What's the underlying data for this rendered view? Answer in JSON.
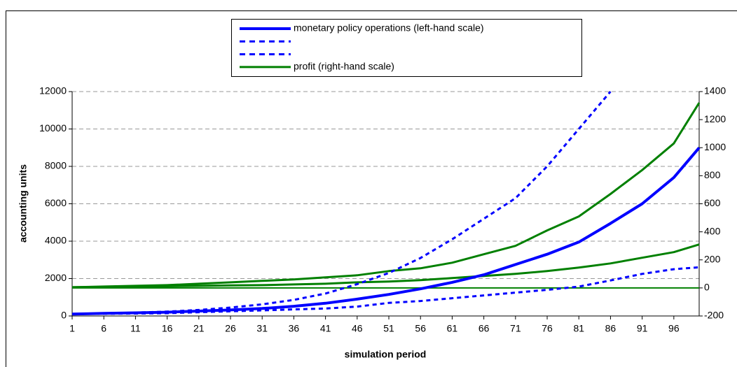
{
  "chart_data": {
    "type": "line",
    "x_label": "simulation period",
    "y_label": "accounting units",
    "x": [
      1,
      6,
      11,
      16,
      21,
      26,
      31,
      36,
      41,
      46,
      51,
      56,
      61,
      66,
      71,
      76,
      81,
      86,
      91,
      96,
      100
    ],
    "xlim": [
      1,
      100
    ],
    "xticks": [
      1,
      6,
      11,
      16,
      21,
      26,
      31,
      36,
      41,
      46,
      51,
      56,
      61,
      66,
      71,
      76,
      81,
      86,
      91,
      96
    ],
    "ylim": [
      0,
      12000
    ],
    "yticks": [
      0,
      2000,
      4000,
      6000,
      8000,
      10000,
      12000
    ],
    "y2lim": [
      -200,
      1400
    ],
    "y2ticks": [
      -200,
      0,
      200,
      400,
      600,
      800,
      1000,
      1200,
      1400
    ],
    "grid": true,
    "series": [
      {
        "name": "monetary policy operations (left-hand scale)",
        "color": "#0000ff",
        "dash": false,
        "width": 4,
        "legend": true,
        "values": [
          100,
          140,
          170,
          200,
          260,
          320,
          400,
          520,
          680,
          900,
          1150,
          1450,
          1800,
          2200,
          2750,
          3300,
          3950,
          4950,
          6000,
          7400,
          9000
        ]
      },
      {
        "name": null,
        "color": "#0000ff",
        "dash": true,
        "width": 3,
        "legend": true,
        "values": [
          100,
          140,
          180,
          230,
          320,
          450,
          620,
          860,
          1200,
          1700,
          2300,
          3100,
          4100,
          5200,
          6300,
          8000,
          10000,
          12000,
          null,
          null,
          null
        ]
      },
      {
        "name": null,
        "color": "#0000ff",
        "dash": true,
        "width": 3,
        "legend": true,
        "values": [
          100,
          120,
          130,
          150,
          200,
          250,
          300,
          350,
          400,
          500,
          700,
          800,
          950,
          1100,
          1250,
          1400,
          1570,
          1900,
          2250,
          2500,
          2600
        ]
      },
      {
        "name": "profit (right-hand scale)",
        "color": "#008000",
        "dash": false,
        "width": 3,
        "legend": true,
        "axis": "y2",
        "values": [
          5,
          10,
          15,
          20,
          30,
          40,
          50,
          60,
          75,
          90,
          120,
          140,
          180,
          240,
          300,
          410,
          510,
          670,
          840,
          1030,
          1320
        ]
      },
      {
        "name": null,
        "color": "#008000",
        "dash": false,
        "width": 3,
        "legend": false,
        "axis": "y2",
        "values": [
          5,
          7,
          10,
          12,
          15,
          18,
          20,
          25,
          30,
          40,
          45,
          55,
          70,
          85,
          100,
          120,
          145,
          175,
          215,
          255,
          310
        ]
      },
      {
        "name": null,
        "color": "#008000",
        "dash": false,
        "width": 2,
        "legend": false,
        "axis": "y2",
        "values": [
          0,
          0,
          0,
          0,
          0,
          0,
          0,
          0,
          0,
          0,
          0,
          0,
          0,
          0,
          0,
          0,
          0,
          0,
          0,
          0,
          0
        ]
      }
    ]
  }
}
